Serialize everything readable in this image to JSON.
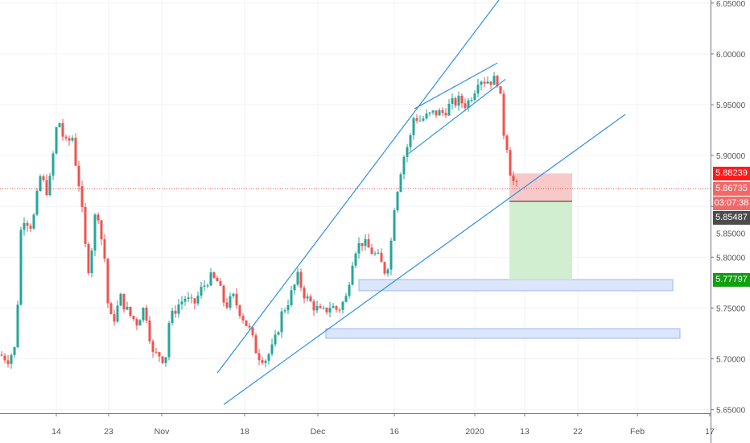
{
  "chart_data": {
    "type": "candlestick",
    "title": "",
    "x_unit": "bar index",
    "ylim": [
      5.64,
      6.055
    ],
    "y_ticks": [
      "5.65000",
      "5.70000",
      "5.75000",
      "5.80000",
      "5.85000",
      "5.90000",
      "5.95000",
      "6.00000",
      "6.05000"
    ],
    "x_ticks": [
      {
        "bar": 14,
        "label": "14"
      },
      {
        "bar": 27,
        "label": "23"
      },
      {
        "bar": 40.2,
        "label": "Nov"
      },
      {
        "bar": 60.8,
        "label": "18"
      },
      {
        "bar": 79,
        "label": "Dec"
      },
      {
        "bar": 98,
        "label": "16"
      },
      {
        "bar": 118,
        "label": "2020"
      },
      {
        "bar": 130.4,
        "label": "13"
      },
      {
        "bar": 143.6,
        "label": "22"
      },
      {
        "bar": 158.4,
        "label": "Feb"
      },
      {
        "bar": 176.4,
        "label": "17"
      }
    ],
    "close_path": [
      [
        0,
        5.704
      ],
      [
        2,
        5.7
      ],
      [
        4,
        5.712
      ],
      [
        5,
        5.823
      ],
      [
        6,
        5.839
      ],
      [
        8,
        5.83
      ],
      [
        10,
        5.879
      ],
      [
        12,
        5.863
      ],
      [
        14,
        5.926
      ],
      [
        15,
        5.934
      ],
      [
        16,
        5.91
      ],
      [
        18,
        5.918
      ],
      [
        19,
        5.887
      ],
      [
        20,
        5.863
      ],
      [
        21,
        5.815
      ],
      [
        22,
        5.79
      ],
      [
        23,
        5.815
      ],
      [
        24,
        5.855
      ],
      [
        25,
        5.823
      ],
      [
        26,
        5.799
      ],
      [
        27,
        5.744
      ],
      [
        28,
        5.736
      ],
      [
        30,
        5.76
      ],
      [
        32,
        5.744
      ],
      [
        34,
        5.736
      ],
      [
        36,
        5.752
      ],
      [
        38,
        5.704
      ],
      [
        40,
        5.704
      ],
      [
        41,
        5.696
      ],
      [
        42,
        5.736
      ],
      [
        44,
        5.752
      ],
      [
        46,
        5.76
      ],
      [
        48,
        5.752
      ],
      [
        50,
        5.768
      ],
      [
        52,
        5.78
      ],
      [
        54,
        5.776
      ],
      [
        56,
        5.752
      ],
      [
        58,
        5.76
      ],
      [
        60,
        5.744
      ],
      [
        62,
        5.728
      ],
      [
        64,
        5.704
      ],
      [
        66,
        5.7
      ],
      [
        68,
        5.712
      ],
      [
        70,
        5.744
      ],
      [
        72,
        5.76
      ],
      [
        74,
        5.78
      ],
      [
        76,
        5.76
      ],
      [
        78,
        5.752
      ],
      [
        80,
        5.744
      ],
      [
        82,
        5.752
      ],
      [
        84,
        5.748
      ],
      [
        86,
        5.76
      ],
      [
        88,
        5.807
      ],
      [
        90,
        5.815
      ],
      [
        92,
        5.807
      ],
      [
        94,
        5.799
      ],
      [
        96,
        5.784
      ],
      [
        97,
        5.807
      ],
      [
        98,
        5.851
      ],
      [
        100,
        5.895
      ],
      [
        102,
        5.918
      ],
      [
        103,
        5.942
      ],
      [
        104,
        5.934
      ],
      [
        106,
        5.938
      ],
      [
        108,
        5.942
      ],
      [
        110,
        5.942
      ],
      [
        112,
        5.95
      ],
      [
        114,
        5.954
      ],
      [
        116,
        5.95
      ],
      [
        118,
        5.966
      ],
      [
        119,
        5.978
      ],
      [
        120,
        5.974
      ],
      [
        122,
        5.974
      ],
      [
        124,
        5.974
      ],
      [
        125,
        5.926
      ],
      [
        126,
        5.91
      ],
      [
        127,
        5.879
      ],
      [
        128,
        5.871
      ],
      [
        129,
        5.867
      ]
    ],
    "last_price": "5.86735",
    "countdown": "03:07:38",
    "price_labels": [
      {
        "value": 5.88239,
        "text": "5.88239",
        "color": "#ff1a1a"
      },
      {
        "value": 5.85487,
        "text": "5.85487",
        "color": "#4c4c4c"
      },
      {
        "value": 5.77797,
        "text": "5.77797",
        "color": "#10a010"
      }
    ],
    "drawings": {
      "trend_lines": [
        {
          "name": "upper-channel-line",
          "from": [
            54,
            5.686
          ],
          "to": [
            124,
            6.053
          ]
        },
        {
          "name": "lower-trend-line",
          "from": [
            55.6,
            5.655
          ],
          "to": [
            155.4,
            5.9405
          ]
        },
        {
          "name": "wedge-upper-line",
          "from": [
            103,
            5.946
          ],
          "to": [
            123.6,
            5.991
          ]
        },
        {
          "name": "wedge-lower-line",
          "from": [
            101.6,
            5.902
          ],
          "to": [
            125.6,
            5.975
          ]
        }
      ],
      "position": {
        "from_bar": 126.6,
        "to_bar": 142.2,
        "stop": 5.88239,
        "entry": 5.85487,
        "target": 5.77797
      },
      "zones": [
        {
          "name": "support-zone-upper",
          "from_bar": 89.2,
          "to_bar": 167.2,
          "top": 5.778,
          "bottom": 5.767
        },
        {
          "name": "support-zone-lower",
          "from_bar": 81,
          "to_bar": 169,
          "top": 5.7297,
          "bottom": 5.7202
        }
      ]
    },
    "colors": {
      "up": "#26a69a",
      "down": "#ef5350",
      "line": "#2f8fe6",
      "zone": "#dbe6fb",
      "zone_border": "#9bb8f0"
    }
  }
}
